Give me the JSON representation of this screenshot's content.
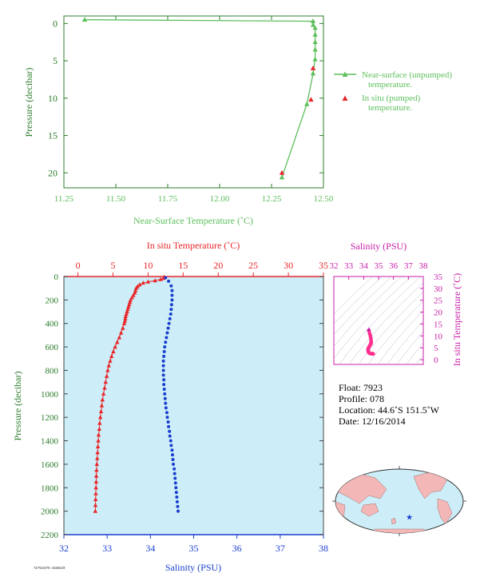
{
  "colors": {
    "green": "#5cbf5c",
    "axis_green": "#2e7d2e",
    "red": "#e8262a",
    "blue": "#1a3fcf",
    "magenta": "#c81fa8",
    "pink": "#ff2f8e",
    "panel_bg": "#cdeef8",
    "land": "#f4b7b7",
    "ocean": "#cdeef8"
  },
  "chart_data": [
    {
      "type": "line",
      "id": "near_surface",
      "xlabel": "Near-Surface Temperature (˚C)",
      "ylabel": "Pressure (decibar)",
      "xlim": [
        11.25,
        12.5
      ],
      "ylim": [
        22,
        -1
      ],
      "xticks": [
        "11.25",
        "11.50",
        "11.75",
        "12.00",
        "12.25",
        "12.50"
      ],
      "yticks": [
        "0",
        "5",
        "10",
        "15",
        "20"
      ],
      "legend": {
        "placement": "right",
        "entries": [
          [
            "Near-surface (unpumped)",
            "temperature."
          ],
          [
            "In situ (pumped)",
            "temperature."
          ]
        ]
      },
      "series": [
        {
          "name": "Near-surface (unpumped) temperature.",
          "marker": "triangle",
          "points": [
            [
              11.35,
              -0.5
            ],
            [
              12.45,
              -0.3
            ],
            [
              12.45,
              0.2
            ],
            [
              12.46,
              0.6
            ],
            [
              12.46,
              1.5
            ],
            [
              12.46,
              2.5
            ],
            [
              12.46,
              3.5
            ],
            [
              12.46,
              4.8
            ],
            [
              12.45,
              6.7
            ],
            [
              12.42,
              10.8
            ],
            [
              12.3,
              20.6
            ]
          ]
        },
        {
          "name": "In situ (pumped) temperature.",
          "marker": "triangle",
          "points": [
            [
              12.45,
              6.0
            ],
            [
              12.44,
              10.2
            ],
            [
              12.3,
              20.0
            ]
          ]
        }
      ]
    },
    {
      "type": "line",
      "id": "profile",
      "top_label": "In situ Temperature (˚C)",
      "xlabel": "Salinity (PSU)",
      "ylabel": "Pressure (decibar)",
      "temp_lim": [
        -2,
        35
      ],
      "sal_lim": [
        32,
        38
      ],
      "ylim": [
        2200,
        0
      ],
      "temp_ticks": [
        "0",
        "5",
        "10",
        "15",
        "20",
        "25",
        "30",
        "35"
      ],
      "sal_ticks": [
        "32",
        "33",
        "34",
        "35",
        "36",
        "37",
        "38"
      ],
      "pressure_ticks": [
        "0",
        "200",
        "400",
        "600",
        "800",
        "1000",
        "1200",
        "1400",
        "1600",
        "1800",
        "2000",
        "2200"
      ],
      "series": [
        {
          "name": "In situ Temperature (˚C)",
          "marker": "triangle",
          "points": [
            [
              12.3,
              5
            ],
            [
              12.2,
              15
            ],
            [
              11.8,
              25
            ],
            [
              11.0,
              35
            ],
            [
              10.0,
              45
            ],
            [
              9.3,
              55
            ],
            [
              8.8,
              70
            ],
            [
              8.5,
              85
            ],
            [
              8.3,
              100
            ],
            [
              8.2,
              120
            ],
            [
              8.1,
              140
            ],
            [
              7.9,
              160
            ],
            [
              7.7,
              180
            ],
            [
              7.5,
              200
            ],
            [
              7.4,
              220
            ],
            [
              7.3,
              240
            ],
            [
              7.2,
              260
            ],
            [
              7.1,
              280
            ],
            [
              7.0,
              300
            ],
            [
              6.9,
              320
            ],
            [
              6.8,
              340
            ],
            [
              6.75,
              360
            ],
            [
              6.7,
              380
            ],
            [
              6.6,
              400
            ],
            [
              6.4,
              440
            ],
            [
              6.15,
              480
            ],
            [
              5.9,
              520
            ],
            [
              5.6,
              560
            ],
            [
              5.3,
              600
            ],
            [
              5.05,
              640
            ],
            [
              4.8,
              680
            ],
            [
              4.6,
              720
            ],
            [
              4.4,
              760
            ],
            [
              4.25,
              800
            ],
            [
              4.1,
              850
            ],
            [
              3.95,
              900
            ],
            [
              3.8,
              950
            ],
            [
              3.65,
              1000
            ],
            [
              3.5,
              1050
            ],
            [
              3.4,
              1100
            ],
            [
              3.3,
              1150
            ],
            [
              3.2,
              1200
            ],
            [
              3.1,
              1250
            ],
            [
              3.05,
              1300
            ],
            [
              2.95,
              1350
            ],
            [
              2.9,
              1400
            ],
            [
              2.85,
              1450
            ],
            [
              2.8,
              1500
            ],
            [
              2.75,
              1550
            ],
            [
              2.7,
              1600
            ],
            [
              2.65,
              1650
            ],
            [
              2.62,
              1700
            ],
            [
              2.6,
              1750
            ],
            [
              2.57,
              1800
            ],
            [
              2.55,
              1850
            ],
            [
              2.52,
              1900
            ],
            [
              2.5,
              1950
            ],
            [
              2.48,
              2000
            ]
          ]
        },
        {
          "name": "Salinity (PSU)",
          "marker": "dot",
          "points": [
            [
              34.35,
              10
            ],
            [
              34.42,
              40
            ],
            [
              34.48,
              80
            ],
            [
              34.5,
              120
            ],
            [
              34.5,
              160
            ],
            [
              34.5,
              200
            ],
            [
              34.49,
              240
            ],
            [
              34.48,
              280
            ],
            [
              34.47,
              320
            ],
            [
              34.45,
              360
            ],
            [
              34.43,
              400
            ],
            [
              34.41,
              440
            ],
            [
              34.39,
              480
            ],
            [
              34.37,
              520
            ],
            [
              34.35,
              560
            ],
            [
              34.33,
              600
            ],
            [
              34.32,
              640
            ],
            [
              34.31,
              680
            ],
            [
              34.3,
              720
            ],
            [
              34.3,
              760
            ],
            [
              34.3,
              800
            ],
            [
              34.3,
              840
            ],
            [
              34.31,
              880
            ],
            [
              34.31,
              920
            ],
            [
              34.32,
              960
            ],
            [
              34.33,
              1000
            ],
            [
              34.34,
              1040
            ],
            [
              34.35,
              1080
            ],
            [
              34.36,
              1120
            ],
            [
              34.38,
              1160
            ],
            [
              34.39,
              1200
            ],
            [
              34.41,
              1240
            ],
            [
              34.42,
              1280
            ],
            [
              34.44,
              1320
            ],
            [
              34.45,
              1360
            ],
            [
              34.47,
              1400
            ],
            [
              34.48,
              1440
            ],
            [
              34.5,
              1480
            ],
            [
              34.51,
              1520
            ],
            [
              34.52,
              1560
            ],
            [
              34.53,
              1600
            ],
            [
              34.55,
              1640
            ],
            [
              34.56,
              1680
            ],
            [
              34.57,
              1720
            ],
            [
              34.58,
              1760
            ],
            [
              34.59,
              1800
            ],
            [
              34.6,
              1840
            ],
            [
              34.61,
              1880
            ],
            [
              34.62,
              1920
            ],
            [
              34.63,
              1960
            ],
            [
              34.64,
              2000
            ]
          ]
        }
      ]
    },
    {
      "type": "scatter",
      "id": "ts_diagram",
      "title": "Salinity (PSU)",
      "ylabel": "In situ Temperature (˚C)",
      "xlim": [
        32,
        38
      ],
      "ylim": [
        -2,
        35
      ],
      "xticks": [
        "32",
        "33",
        "34",
        "35",
        "36",
        "37",
        "38"
      ],
      "yticks": [
        "0",
        "5",
        "10",
        "15",
        "20",
        "25",
        "30",
        "35"
      ],
      "points": [
        [
          34.35,
          12.3
        ],
        [
          34.4,
          11.0
        ],
        [
          34.45,
          10.0
        ],
        [
          34.48,
          9.0
        ],
        [
          34.5,
          8.0
        ],
        [
          34.5,
          7.3
        ],
        [
          34.49,
          6.8
        ],
        [
          34.45,
          6.3
        ],
        [
          34.4,
          5.8
        ],
        [
          34.35,
          5.2
        ],
        [
          34.3,
          4.6
        ],
        [
          34.3,
          4.0
        ],
        [
          34.31,
          3.5
        ],
        [
          34.34,
          3.1
        ],
        [
          34.38,
          2.8
        ],
        [
          34.44,
          2.6
        ],
        [
          34.52,
          2.5
        ],
        [
          34.6,
          2.48
        ],
        [
          34.64,
          2.45
        ]
      ]
    }
  ],
  "info": {
    "float": "Float:  7923",
    "profile": "Profile:  078",
    "location": "Location:  44.6˚S  151.5˚W",
    "date": "Date:  12/16/2014"
  },
  "footnote": "74/7923/078 / 20260218",
  "map": {
    "float_lon": -151.5,
    "float_lat": -44.6
  }
}
